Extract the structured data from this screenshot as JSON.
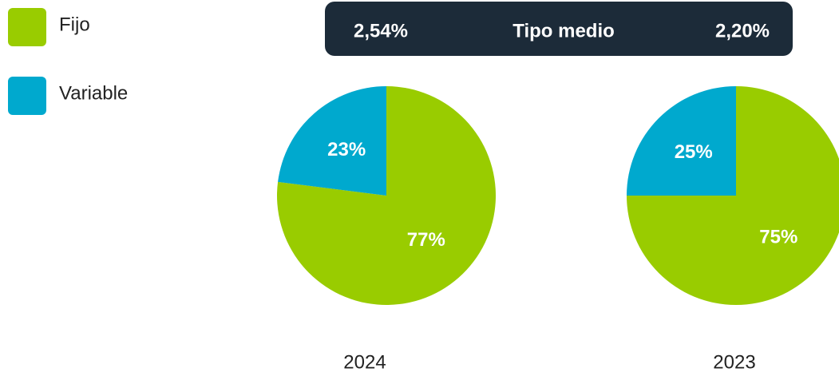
{
  "banner": {
    "left": "2,54%",
    "title": "Tipo medio",
    "right": "2,20%"
  },
  "chart_data": [
    {
      "type": "pie",
      "title": "2024",
      "categories": [
        "Fijo",
        "Variable"
      ],
      "values": [
        77,
        23
      ],
      "value_labels": [
        "77%",
        "23%"
      ],
      "colors": [
        "#99cc00",
        "#00a9ce"
      ]
    },
    {
      "type": "pie",
      "title": "2023",
      "categories": [
        "Fijo",
        "Variable"
      ],
      "values": [
        75,
        25
      ],
      "value_labels": [
        "75%",
        "25%"
      ],
      "colors": [
        "#99cc00",
        "#00a9ce"
      ]
    }
  ]
}
